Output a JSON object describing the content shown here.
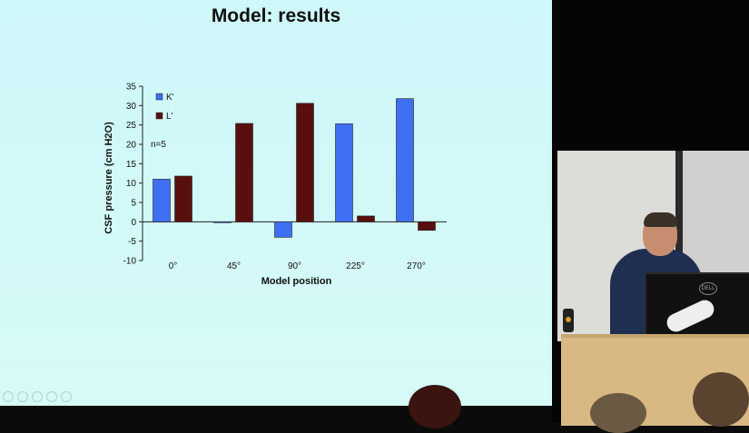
{
  "slide": {
    "title": "Model: results"
  },
  "chart_data": {
    "type": "bar",
    "categories": [
      "0°",
      "45°",
      "90°",
      "225°",
      "270°"
    ],
    "series": [
      {
        "name": "K'",
        "values": [
          11,
          0,
          -4,
          25.3,
          31.8
        ],
        "color": "#3f6ff2"
      },
      {
        "name": "L'",
        "values": [
          11.8,
          25.4,
          30.6,
          1.5,
          -2.2
        ],
        "color": "#5a0f0f"
      }
    ],
    "ylim": [
      -10,
      35
    ],
    "yticks": [
      -10,
      -5,
      0,
      5,
      10,
      15,
      20,
      25,
      30,
      35
    ],
    "xlabel": "Model position",
    "ylabel": "CSF pressure (cm H2O)",
    "annotation": "n=5",
    "legend_position": "top-left",
    "grid": false
  }
}
